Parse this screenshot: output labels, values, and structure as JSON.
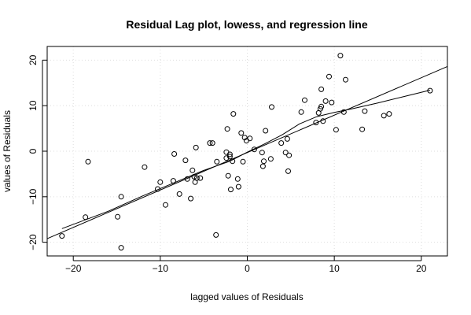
{
  "chart_data": {
    "type": "scatter",
    "title": "Residual Lag plot, lowess, and regression line",
    "xlabel": "lagged values of Residuals",
    "ylabel": "values of Residuals",
    "xlim": [
      -23,
      23
    ],
    "ylim": [
      -23,
      23
    ],
    "xticks": [
      -20,
      -10,
      0,
      10,
      20
    ],
    "yticks": [
      -20,
      -10,
      0,
      10,
      20
    ],
    "grid": true,
    "x": [
      -21.3,
      -18.6,
      -18.3,
      -14.9,
      -14.5,
      -14.5,
      -11.8,
      -10.3,
      -10.0,
      -9.4,
      -8.5,
      -8.4,
      -7.8,
      -7.1,
      -6.9,
      -6.5,
      -6.3,
      -6.1,
      -6.0,
      -5.9,
      -5.8,
      -5.4,
      -4.3,
      -4.0,
      -3.6,
      -3.5,
      -2.4,
      -2.4,
      -2.3,
      -2.2,
      -2.0,
      -2.0,
      -1.9,
      -1.7,
      -1.6,
      -1.1,
      -1.0,
      -0.7,
      -0.5,
      -0.3,
      -0.1,
      0.3,
      0.8,
      1.7,
      1.8,
      1.9,
      2.1,
      2.7,
      2.8,
      3.9,
      4.4,
      4.6,
      4.7,
      4.8,
      6.2,
      6.6,
      7.9,
      8.2,
      8.4,
      8.5,
      8.5,
      8.7,
      9.0,
      9.4,
      9.7,
      10.2,
      10.7,
      11.1,
      11.3,
      13.2,
      13.5,
      15.7,
      16.3,
      21.0
    ],
    "y": [
      -18.6,
      -14.5,
      -2.3,
      -14.4,
      -10.0,
      -21.2,
      -3.5,
      -8.3,
      -6.8,
      -11.8,
      -6.5,
      -0.6,
      -9.4,
      -2.0,
      -6.1,
      -10.4,
      -4.2,
      -5.6,
      -6.8,
      0.8,
      -5.9,
      -5.9,
      1.8,
      1.8,
      -18.4,
      -2.3,
      -1.5,
      -0.2,
      4.9,
      -5.4,
      -0.7,
      -1.2,
      -8.4,
      -2.2,
      8.2,
      -6.1,
      -7.8,
      4.0,
      -2.3,
      3.0,
      2.3,
      2.8,
      0.4,
      -0.3,
      -3.3,
      -2.2,
      4.5,
      -1.7,
      9.7,
      1.8,
      -0.3,
      2.7,
      -4.4,
      -0.9,
      8.6,
      11.2,
      6.3,
      8.4,
      9.3,
      13.6,
      9.8,
      6.6,
      11.0,
      16.4,
      10.7,
      4.7,
      21.0,
      8.6,
      15.7,
      4.8,
      8.8,
      7.8,
      8.2,
      13.3
    ],
    "regression_line": {
      "x": [
        -23,
        23
      ],
      "y": [
        -19.2,
        18.6
      ]
    },
    "lowess": {
      "x": [
        -21.3,
        -16,
        -12,
        -8,
        -5,
        -2,
        0,
        2,
        4,
        6,
        8,
        10,
        12,
        15,
        18,
        21
      ],
      "y": [
        -17.0,
        -13.2,
        -9.8,
        -6.6,
        -4.2,
        -2.2,
        -0.2,
        1.6,
        3.6,
        6.0,
        7.6,
        8.5,
        9.3,
        10.6,
        12.0,
        13.4
      ]
    }
  }
}
